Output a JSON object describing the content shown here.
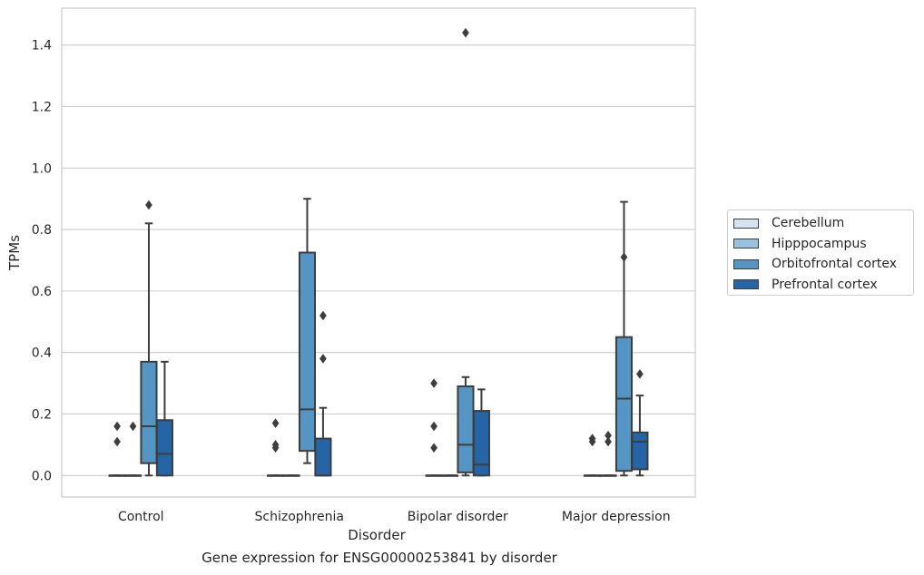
{
  "chart_data": {
    "type": "box",
    "xlabel": "Disorder",
    "ylabel": "TPMs",
    "caption": "Gene expression for ENSG00000253841 by disorder",
    "categories": [
      "Control",
      "Schizophrenia",
      "Bipolar disorder",
      "Major depression"
    ],
    "ylim": [
      -0.07,
      1.52
    ],
    "yticks": [
      "0.0",
      "0.2",
      "0.4",
      "0.6",
      "0.8",
      "1.0",
      "1.2",
      "1.4"
    ],
    "grid": true,
    "legend_position": "right",
    "series": [
      {
        "name": "Cerebellum",
        "color": "#d4e4f2",
        "boxes": [
          {
            "q1": 0,
            "median": 0,
            "q3": 0,
            "whisker_low": 0,
            "whisker_high": 0,
            "outliers": [
              0.11,
              0.16
            ]
          },
          {
            "q1": 0,
            "median": 0,
            "q3": 0,
            "whisker_low": 0,
            "whisker_high": 0,
            "outliers": [
              0.09,
              0.1,
              0.17
            ]
          },
          {
            "q1": 0,
            "median": 0,
            "q3": 0,
            "whisker_low": 0,
            "whisker_high": 0,
            "outliers": [
              0.09,
              0.16,
              0.3
            ]
          },
          {
            "q1": 0,
            "median": 0,
            "q3": 0,
            "whisker_low": 0,
            "whisker_high": 0,
            "outliers": [
              0.11,
              0.12
            ]
          }
        ]
      },
      {
        "name": "Hipppocampus",
        "color": "#9ac1dd",
        "boxes": [
          {
            "q1": 0,
            "median": 0,
            "q3": 0,
            "whisker_low": 0,
            "whisker_high": 0,
            "outliers": [
              0.16
            ]
          },
          {
            "q1": 0,
            "median": 0,
            "q3": 0,
            "whisker_low": 0,
            "whisker_high": 0,
            "outliers": []
          },
          {
            "q1": 0,
            "median": 0,
            "q3": 0,
            "whisker_low": 0,
            "whisker_high": 0,
            "outliers": []
          },
          {
            "q1": 0,
            "median": 0,
            "q3": 0,
            "whisker_low": 0,
            "whisker_high": 0,
            "outliers": [
              0.11,
              0.13
            ]
          }
        ]
      },
      {
        "name": "Orbitofrontal cortex",
        "color": "#5595c3",
        "boxes": [
          {
            "q1": 0.04,
            "median": 0.16,
            "q3": 0.37,
            "whisker_low": 0.0,
            "whisker_high": 0.82,
            "outliers": [
              0.88
            ]
          },
          {
            "q1": 0.08,
            "median": 0.215,
            "q3": 0.725,
            "whisker_low": 0.04,
            "whisker_high": 0.9,
            "outliers": []
          },
          {
            "q1": 0.01,
            "median": 0.1,
            "q3": 0.29,
            "whisker_low": 0.0,
            "whisker_high": 0.32,
            "outliers": [
              1.44
            ]
          },
          {
            "q1": 0.015,
            "median": 0.25,
            "q3": 0.45,
            "whisker_low": 0.0,
            "whisker_high": 0.89,
            "outliers": [
              0.71
            ]
          }
        ]
      },
      {
        "name": "Prefrontal cortex",
        "color": "#2565a5",
        "boxes": [
          {
            "q1": 0.0,
            "median": 0.07,
            "q3": 0.18,
            "whisker_low": 0.0,
            "whisker_high": 0.37,
            "outliers": []
          },
          {
            "q1": 0.0,
            "median": 0.0,
            "q3": 0.12,
            "whisker_low": 0.0,
            "whisker_high": 0.22,
            "outliers": [
              0.38,
              0.52
            ]
          },
          {
            "q1": 0.0,
            "median": 0.035,
            "q3": 0.21,
            "whisker_low": 0.0,
            "whisker_high": 0.28,
            "outliers": []
          },
          {
            "q1": 0.02,
            "median": 0.11,
            "q3": 0.14,
            "whisker_low": 0.0,
            "whisker_high": 0.26,
            "outliers": [
              0.33
            ]
          }
        ]
      }
    ]
  }
}
